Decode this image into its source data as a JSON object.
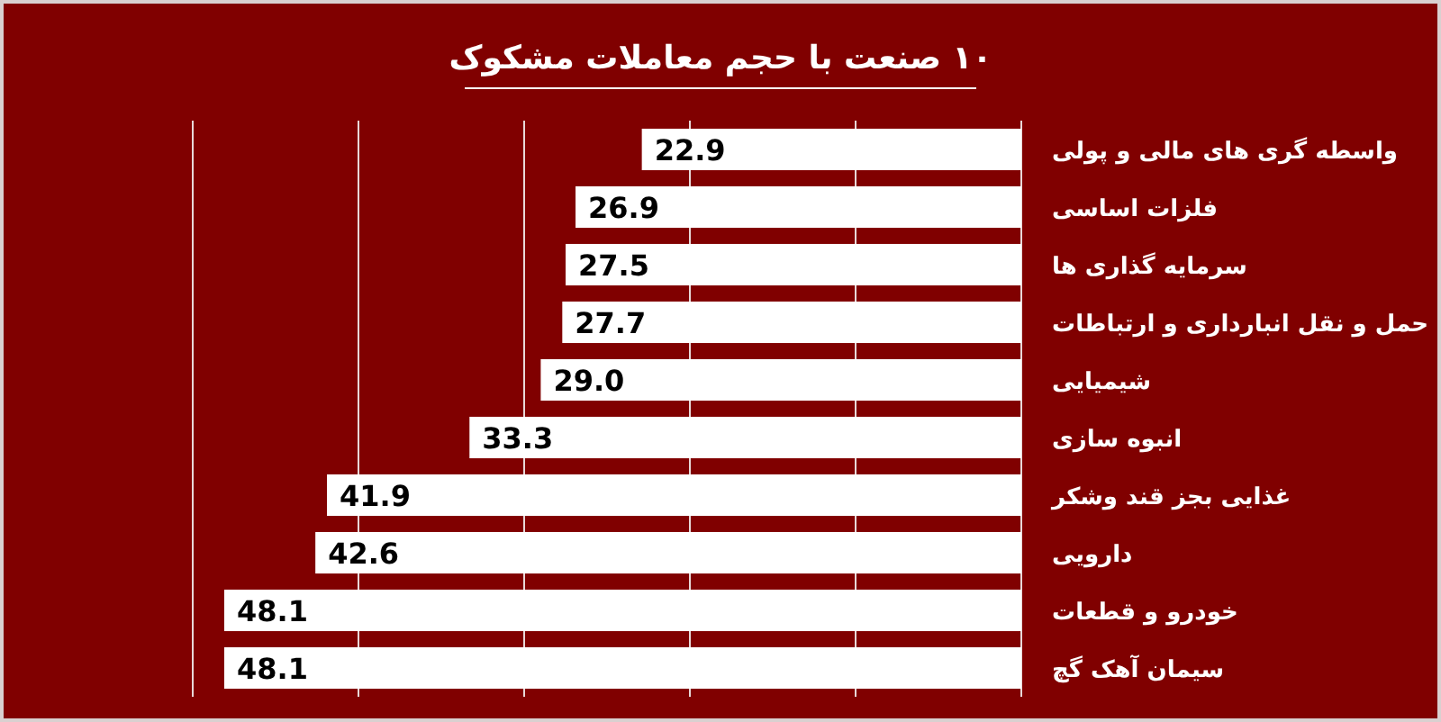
{
  "chart_data": {
    "type": "bar",
    "orientation": "horizontal",
    "title": "۱۰ صنعت با حجم معاملات مشکوک",
    "categories": [
      "واسطه گری های مالی و پولی",
      "فلزات اساسی",
      "سرمایه گذاری ها",
      "حمل و نقل انبارداری و ارتباطات",
      "شیمیایی",
      "انبوه سازی",
      "غذایی بجز قند وشکر",
      "دارویی",
      "خودرو و قطعات",
      "سیمان آهک گچ"
    ],
    "values": [
      22.9,
      26.9,
      27.5,
      27.7,
      29.0,
      33.3,
      41.9,
      42.6,
      48.1,
      48.1
    ],
    "value_labels": [
      "22.9",
      "26.9",
      "27.5",
      "27.7",
      "29.0",
      "33.3",
      "41.9",
      "42.6",
      "48.1",
      "48.1"
    ],
    "color": "#ffffff",
    "xlim": [
      50,
      0
    ],
    "xticks": [
      {
        "value": 0,
        "label": null
      },
      {
        "value": 10,
        "label": null
      },
      {
        "value": 20,
        "label": null
      },
      {
        "value": 30,
        "label": null
      },
      {
        "value": 40,
        "label": null
      },
      {
        "value": 50,
        "label": null
      }
    ],
    "grid": "x"
  }
}
